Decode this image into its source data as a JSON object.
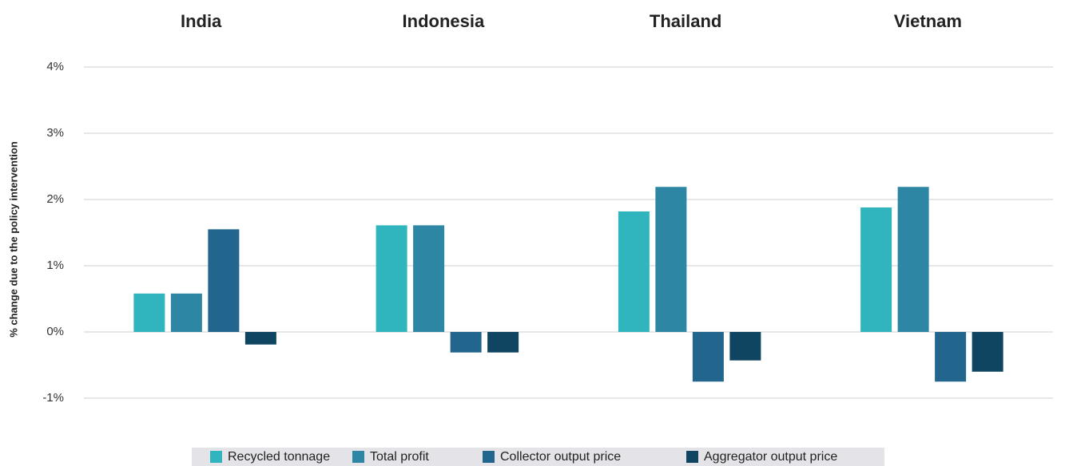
{
  "chart_data": {
    "type": "bar",
    "y_label": "% change due to the policy intervention",
    "categories": [
      "India",
      "Indonesia",
      "Thailand",
      "Vietnam"
    ],
    "series": [
      {
        "name": "Recycled tonnage",
        "color": "#30b5bf",
        "values": [
          0.58,
          1.61,
          1.82,
          1.88
        ]
      },
      {
        "name": "Total profit",
        "color": "#2d86a4",
        "values": [
          0.58,
          1.61,
          2.19,
          2.19
        ]
      },
      {
        "name": "Collector output price",
        "color": "#22668e",
        "values": [
          1.55,
          -0.31,
          -0.75,
          -0.75
        ]
      },
      {
        "name": "Aggregator output price",
        "color": "#0f4561",
        "values": [
          -0.19,
          -0.31,
          -0.43,
          -0.6
        ]
      }
    ],
    "ylim": [
      -1.4,
      4.4
    ],
    "yticks": [
      {
        "value": -1,
        "label": "-1%"
      },
      {
        "value": 0,
        "label": "0%"
      },
      {
        "value": 1,
        "label": "1%"
      },
      {
        "value": 2,
        "label": "2%"
      },
      {
        "value": 3,
        "label": "3%"
      },
      {
        "value": 4,
        "label": "4%"
      }
    ],
    "grid": true
  }
}
